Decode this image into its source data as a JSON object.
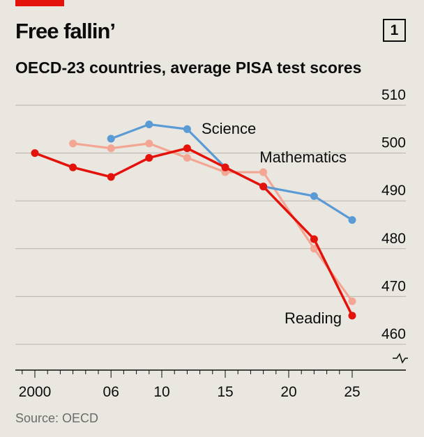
{
  "header": {
    "title": "Free fallin’",
    "chart_number": "1",
    "subtitle": "OECD-23 countries, average PISA test scores"
  },
  "footer": {
    "source": "Source: OECD"
  },
  "colors": {
    "accent_red": "#e3120b",
    "reading": "#e3120b",
    "mathematics": "#f4a694",
    "science": "#5b9bd5",
    "background": "#e9e7df"
  },
  "chart_data": {
    "type": "line",
    "title": "Free fallin’",
    "subtitle": "OECD-23 countries, average PISA test scores",
    "xlabel": "",
    "ylabel": "",
    "xlim": [
      1999,
      2026
    ],
    "ylim": [
      460,
      510
    ],
    "y_axis_side": "right",
    "y_axis_break": true,
    "grid": "horizontal",
    "x_ticks": [
      2000,
      2006,
      2010,
      2015,
      2020,
      2025
    ],
    "x_tick_labels": [
      "2000",
      "06",
      "10",
      "15",
      "20",
      "25"
    ],
    "y_ticks": [
      460,
      470,
      480,
      490,
      500,
      510
    ],
    "y_tick_labels": [
      "460",
      "470",
      "480",
      "490",
      "500",
      "510"
    ],
    "series": [
      {
        "name": "Mathematics",
        "color": "#f4a694",
        "x": [
          2003,
          2006,
          2009,
          2012,
          2015,
          2018,
          2022,
          2025
        ],
        "values": [
          502,
          501,
          502,
          499,
          496,
          496,
          480,
          469
        ]
      },
      {
        "name": "Science",
        "color": "#5b9bd5",
        "x": [
          2006,
          2009,
          2012,
          2015,
          2018,
          2022,
          2025
        ],
        "values": [
          503,
          506,
          505,
          497,
          493,
          491,
          486
        ]
      },
      {
        "name": "Reading",
        "color": "#e3120b",
        "x": [
          2000,
          2003,
          2006,
          2009,
          2012,
          2015,
          2018,
          2022,
          2025
        ],
        "values": [
          500,
          497,
          495,
          499,
          501,
          497,
          493,
          482,
          466
        ]
      }
    ]
  }
}
